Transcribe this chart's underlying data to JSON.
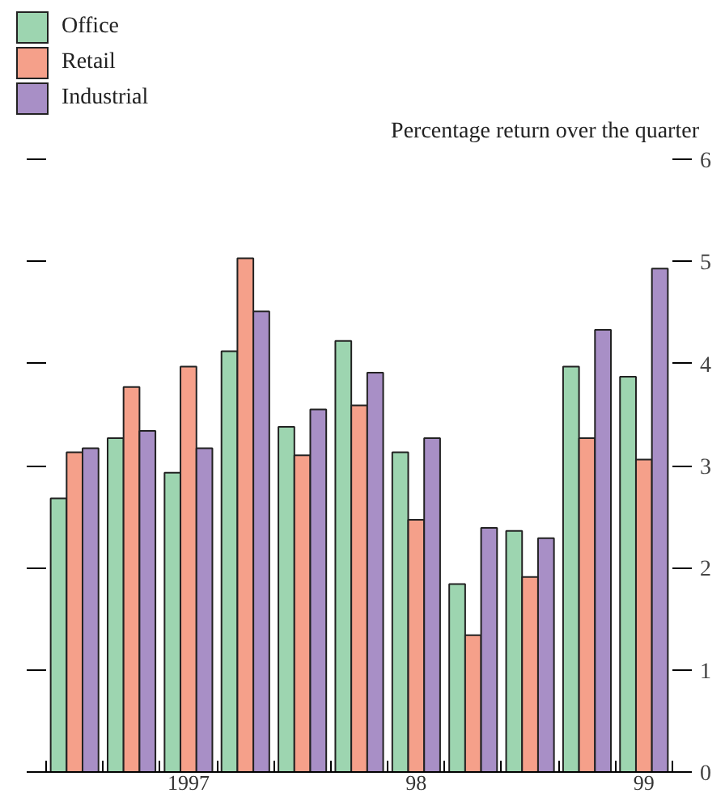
{
  "chart_data": {
    "type": "bar",
    "ylabel": "Percentage return over the quarter",
    "categories": [
      null,
      null,
      "1997",
      null,
      null,
      null,
      "98",
      null,
      null,
      null,
      "99"
    ],
    "series": [
      {
        "name": "Office",
        "color": "#9dd5b0",
        "values": [
          2.68,
          3.27,
          2.93,
          4.12,
          3.38,
          4.22,
          3.13,
          1.84,
          2.36,
          3.97,
          3.87
        ]
      },
      {
        "name": "Retail",
        "color": "#f5a08a",
        "values": [
          3.13,
          3.77,
          3.97,
          5.03,
          3.1,
          3.59,
          2.47,
          1.34,
          1.91,
          3.27,
          3.06
        ]
      },
      {
        "name": "Industrial",
        "color": "#a88fc6",
        "values": [
          3.17,
          3.34,
          3.17,
          4.51,
          3.55,
          3.91,
          3.27,
          2.39,
          2.29,
          4.33,
          4.93
        ]
      }
    ],
    "ylim": [
      0,
      6
    ],
    "yticks": [
      0,
      1,
      2,
      3,
      4,
      5,
      6
    ],
    "grid": false,
    "legend": "top left"
  }
}
